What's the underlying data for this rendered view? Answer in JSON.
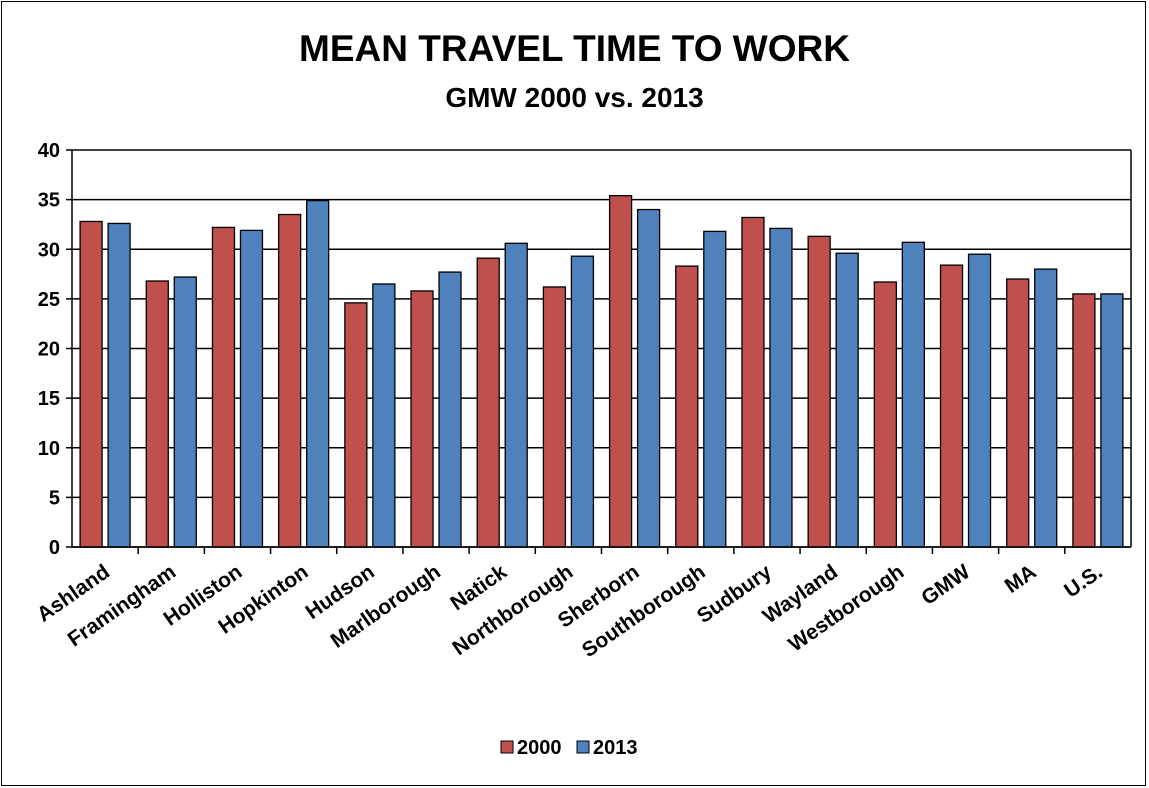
{
  "chart_data": {
    "type": "bar",
    "title": "MEAN TRAVEL TIME TO WORK",
    "subtitle": "GMW 2000 vs. 2013",
    "categories": [
      "Ashland",
      "Framingham",
      "Holliston",
      "Hopkinton",
      "Hudson",
      "Marlborough",
      "Natick",
      "Northborough",
      "Sherborn",
      "Southborough",
      "Sudbury",
      "Wayland",
      "Westborough",
      "GMW",
      "MA",
      "U.S."
    ],
    "series": [
      {
        "name": "2000",
        "color": "#c0504d",
        "values": [
          32.8,
          26.8,
          32.2,
          33.5,
          24.6,
          25.8,
          29.1,
          26.2,
          35.4,
          28.3,
          33.2,
          31.3,
          26.7,
          28.4,
          27.0,
          25.5
        ]
      },
      {
        "name": "2013",
        "color": "#4f81bd",
        "values": [
          32.6,
          27.2,
          31.9,
          34.9,
          26.5,
          27.7,
          30.6,
          29.3,
          34.0,
          31.8,
          32.1,
          29.6,
          30.7,
          29.5,
          28.0,
          25.5
        ]
      }
    ],
    "ylim": [
      0,
      40
    ],
    "yticks": [
      0,
      5,
      10,
      15,
      20,
      25,
      30,
      35,
      40
    ],
    "grid": true,
    "legend": "bottom"
  }
}
